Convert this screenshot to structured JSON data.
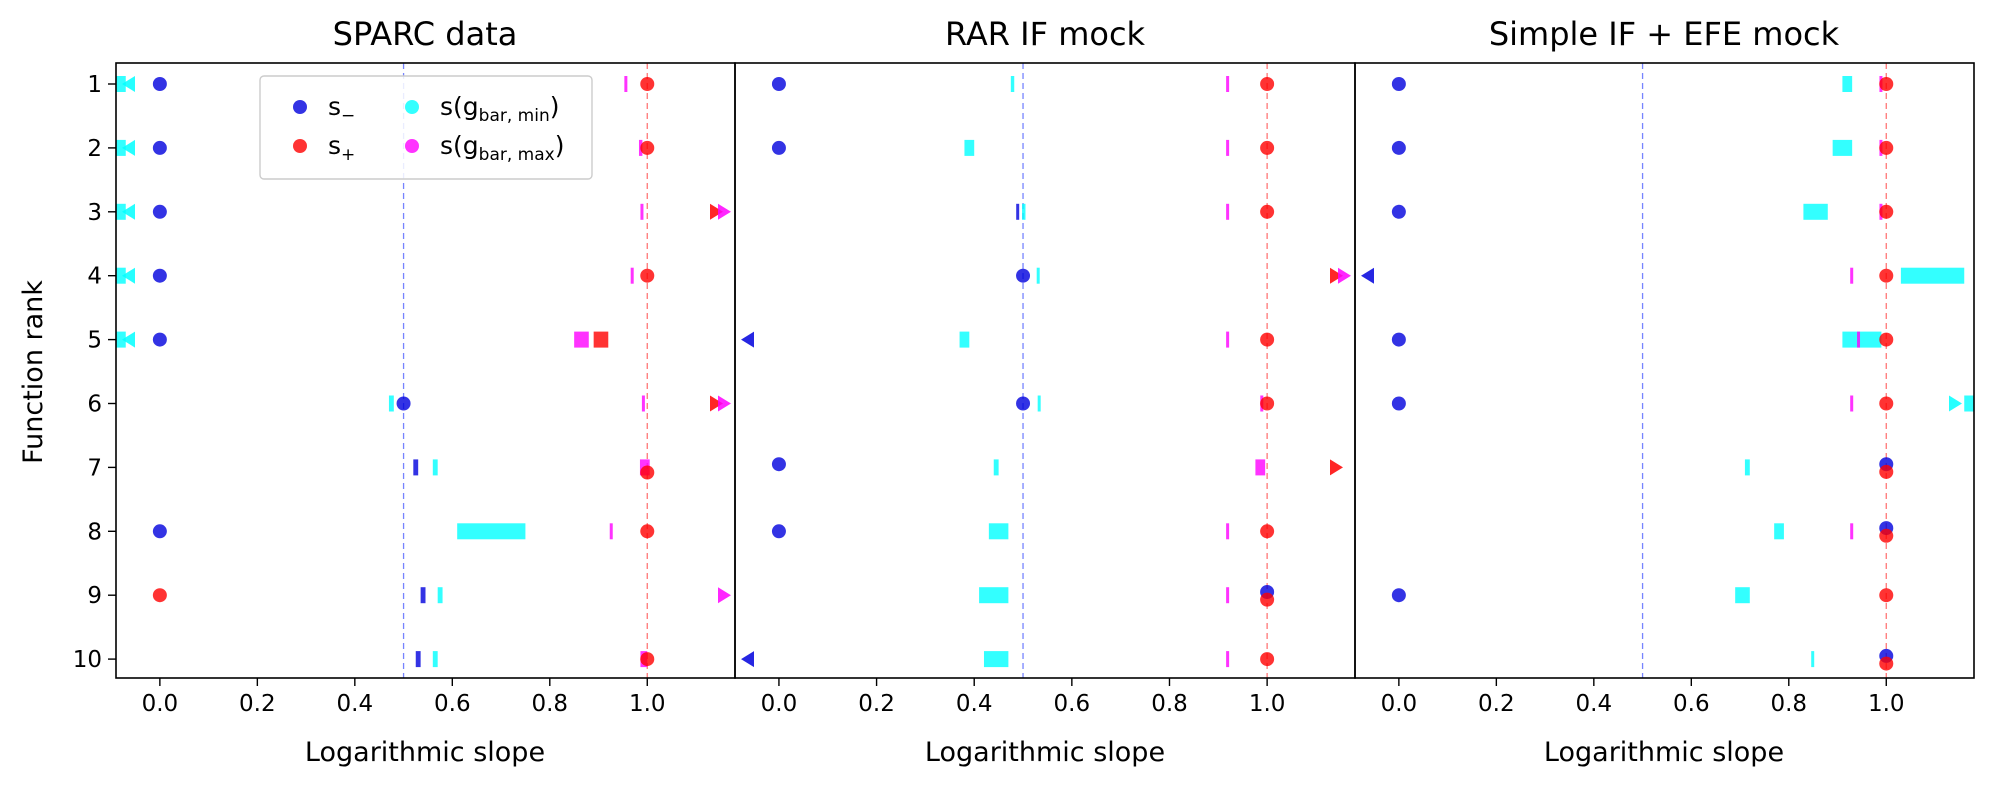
{
  "chart_data": {
    "type": "scatter",
    "ylabel": "Function rank",
    "y_categories": [
      "1",
      "2",
      "3",
      "4",
      "5",
      "6",
      "7",
      "8",
      "9",
      "10"
    ],
    "xlim": [
      -0.09,
      1.18
    ],
    "x_ticks": [
      "0.0",
      "0.2",
      "0.4",
      "0.6",
      "0.8",
      "1.0"
    ],
    "x_tick_values": [
      0.0,
      0.2,
      0.4,
      0.6,
      0.8,
      1.0
    ],
    "legend": {
      "location": "upper-left (first panel)",
      "entries": [
        {
          "key": "s_minus",
          "base": "s",
          "sub": "−",
          "color": "#0000dd"
        },
        {
          "key": "s_plus",
          "base": "s",
          "sub": "+",
          "color": "#ff0000"
        },
        {
          "key": "s_gmin",
          "base": "s(g",
          "sub": "bar, min",
          "tail": ")",
          "color": "#00ffff"
        },
        {
          "key": "s_gmax",
          "base": "s(g",
          "sub": "bar, max",
          "tail": ")",
          "color": "#ff00ff"
        }
      ]
    },
    "panels": [
      {
        "title": "SPARC data",
        "xlabel": "Logarithmic slope",
        "ref_lines": [
          0.5,
          1.0
        ],
        "s_minus": [
          {
            "rank": 1,
            "x": 0.0
          },
          {
            "rank": 2,
            "x": 0.0
          },
          {
            "rank": 3,
            "x": 0.0
          },
          {
            "rank": 4,
            "x": 0.0
          },
          {
            "rank": 5,
            "x": 0.0
          },
          {
            "rank": 6,
            "x": 0.5
          },
          {
            "rank": 8,
            "x": 0.0
          },
          {
            "rank": 9,
            "x": null
          },
          {
            "rank": 10,
            "x": null
          }
        ],
        "s_plus": [
          {
            "rank": 1,
            "x": 1.0
          },
          {
            "rank": 2,
            "x": 1.0
          },
          {
            "rank": 4,
            "x": 1.0
          },
          {
            "rank": 7,
            "x": 1.0,
            "dy": 0.08
          },
          {
            "rank": 8,
            "x": 1.0
          },
          {
            "rank": 9,
            "x": 0.0
          },
          {
            "rank": 10,
            "x": 1.0
          }
        ],
        "s_gmin_range": [
          {
            "rank": 1,
            "x": [
              -0.09,
              -0.07
            ]
          },
          {
            "rank": 2,
            "x": [
              -0.09,
              -0.07
            ]
          },
          {
            "rank": 3,
            "x": [
              -0.09,
              -0.07
            ]
          },
          {
            "rank": 4,
            "x": [
              -0.09,
              -0.07
            ]
          },
          {
            "rank": 5,
            "x": [
              -0.09,
              -0.07
            ]
          },
          {
            "rank": 6,
            "x": [
              0.47,
              0.48
            ]
          },
          {
            "rank": 7,
            "x": [
              0.56,
              0.57
            ]
          },
          {
            "rank": 8,
            "x": [
              0.61,
              0.75
            ]
          },
          {
            "rank": 9,
            "x": [
              0.57,
              0.58
            ]
          },
          {
            "rank": 10,
            "x": [
              0.56,
              0.57
            ]
          }
        ],
        "s_gmax_range": [
          {
            "rank": 1,
            "x": [
              0.953,
              0.958
            ]
          },
          {
            "rank": 2,
            "x": [
              0.983,
              0.99
            ]
          },
          {
            "rank": 3,
            "x": [
              0.986,
              0.99
            ]
          },
          {
            "rank": 4,
            "x": [
              0.966,
              0.971
            ]
          },
          {
            "rank": 5,
            "x": [
              0.85,
              0.88
            ]
          },
          {
            "rank": 6,
            "x": [
              0.989,
              0.993
            ]
          },
          {
            "rank": 7,
            "x": [
              0.985,
              1.005
            ]
          },
          {
            "rank": 8,
            "x": [
              0.923,
              0.929
            ]
          },
          {
            "rank": 10,
            "x": [
              0.986,
              1.0
            ]
          }
        ],
        "s_minus_range": [
          {
            "rank": 7,
            "x": [
              0.52,
              0.53
            ]
          },
          {
            "rank": 9,
            "x": [
              0.535,
              0.545
            ]
          },
          {
            "rank": 10,
            "x": [
              0.525,
              0.535
            ]
          }
        ],
        "s_plus_range": [
          {
            "rank": 5,
            "x": [
              0.89,
              0.92
            ]
          }
        ],
        "markers": [
          {
            "rank": 1,
            "series": "s_gmin",
            "dir": "left"
          },
          {
            "rank": 2,
            "series": "s_gmin",
            "dir": "left"
          },
          {
            "rank": 3,
            "series": "s_gmin",
            "dir": "left"
          },
          {
            "rank": 4,
            "series": "s_gmin",
            "dir": "left"
          },
          {
            "rank": 5,
            "series": "s_gmin",
            "dir": "left"
          },
          {
            "rank": 3,
            "series": "s_plus",
            "dir": "right"
          },
          {
            "rank": 3,
            "series": "s_gmax",
            "dir": "right"
          },
          {
            "rank": 6,
            "series": "s_plus",
            "dir": "right"
          },
          {
            "rank": 6,
            "series": "s_gmax",
            "dir": "right"
          },
          {
            "rank": 9,
            "series": "s_gmax",
            "dir": "right"
          }
        ]
      },
      {
        "title": "RAR IF mock",
        "xlabel": "Logarithmic slope",
        "ref_lines": [
          0.5,
          1.0
        ],
        "s_minus": [
          {
            "rank": 1,
            "x": 0.0
          },
          {
            "rank": 2,
            "x": 0.0
          },
          {
            "rank": 4,
            "x": 0.5
          },
          {
            "rank": 6,
            "x": 0.5
          },
          {
            "rank": 7,
            "x": 0.0,
            "dy": -0.05
          },
          {
            "rank": 8,
            "x": 0.0
          },
          {
            "rank": 9,
            "x": 1.0,
            "dy": -0.05
          }
        ],
        "s_plus": [
          {
            "rank": 1,
            "x": 1.0
          },
          {
            "rank": 2,
            "x": 1.0
          },
          {
            "rank": 3,
            "x": 1.0
          },
          {
            "rank": 5,
            "x": 1.0
          },
          {
            "rank": 6,
            "x": 1.0
          },
          {
            "rank": 8,
            "x": 1.0
          },
          {
            "rank": 9,
            "x": 1.0,
            "dy": 0.07
          },
          {
            "rank": 10,
            "x": 1.0
          }
        ],
        "s_gmin_range": [
          {
            "rank": 1,
            "x": [
              0.475,
              0.482
            ]
          },
          {
            "rank": 2,
            "x": [
              0.38,
              0.4
            ]
          },
          {
            "rank": 3,
            "x": [
              0.498,
              0.505
            ]
          },
          {
            "rank": 4,
            "x": [
              0.528,
              0.533
            ]
          },
          {
            "rank": 5,
            "x": [
              0.37,
              0.39
            ]
          },
          {
            "rank": 6,
            "x": [
              0.53,
              0.535
            ]
          },
          {
            "rank": 7,
            "x": [
              0.44,
              0.45
            ]
          },
          {
            "rank": 8,
            "x": [
              0.43,
              0.47
            ]
          },
          {
            "rank": 9,
            "x": [
              0.41,
              0.47
            ]
          },
          {
            "rank": 10,
            "x": [
              0.42,
              0.47
            ]
          }
        ],
        "s_gmax_range": [
          {
            "rank": 1,
            "x": [
              0.916,
              0.92
            ]
          },
          {
            "rank": 2,
            "x": [
              0.916,
              0.92
            ]
          },
          {
            "rank": 3,
            "x": [
              0.916,
              0.92
            ]
          },
          {
            "rank": 5,
            "x": [
              0.916,
              0.92
            ]
          },
          {
            "rank": 6,
            "x": [
              0.986,
              0.99
            ]
          },
          {
            "rank": 7,
            "x": [
              0.976,
              0.996
            ]
          },
          {
            "rank": 8,
            "x": [
              0.916,
              0.92
            ]
          },
          {
            "rank": 9,
            "x": [
              0.916,
              0.92
            ]
          },
          {
            "rank": 10,
            "x": [
              0.916,
              0.92
            ]
          }
        ],
        "s_minus_range": [
          {
            "rank": 3,
            "x": [
              0.486,
              0.49
            ]
          }
        ],
        "s_plus_range": [],
        "markers": [
          {
            "rank": 4,
            "series": "s_plus",
            "dir": "right"
          },
          {
            "rank": 4,
            "series": "s_gmax",
            "dir": "right"
          },
          {
            "rank": 5,
            "series": "s_minus",
            "dir": "left"
          },
          {
            "rank": 7,
            "series": "s_plus",
            "dir": "right"
          },
          {
            "rank": 10,
            "series": "s_minus",
            "dir": "left"
          }
        ]
      },
      {
        "title": "Simple IF + EFE mock",
        "xlabel": "Logarithmic slope",
        "ref_lines": [
          0.5,
          1.0
        ],
        "s_minus": [
          {
            "rank": 1,
            "x": 0.0
          },
          {
            "rank": 2,
            "x": 0.0
          },
          {
            "rank": 3,
            "x": 0.0
          },
          {
            "rank": 5,
            "x": 0.0
          },
          {
            "rank": 6,
            "x": 0.0
          },
          {
            "rank": 7,
            "x": 1.0,
            "dy": -0.05
          },
          {
            "rank": 8,
            "x": 1.0,
            "dy": -0.05
          },
          {
            "rank": 9,
            "x": 0.0
          },
          {
            "rank": 10,
            "x": 1.0,
            "dy": -0.05
          }
        ],
        "s_plus": [
          {
            "rank": 1,
            "x": 1.0
          },
          {
            "rank": 2,
            "x": 1.0
          },
          {
            "rank": 3,
            "x": 1.0
          },
          {
            "rank": 4,
            "x": 1.0
          },
          {
            "rank": 5,
            "x": 1.0
          },
          {
            "rank": 6,
            "x": 1.0
          },
          {
            "rank": 7,
            "x": 1.0,
            "dy": 0.07
          },
          {
            "rank": 8,
            "x": 1.0,
            "dy": 0.07
          },
          {
            "rank": 9,
            "x": 1.0
          },
          {
            "rank": 10,
            "x": 1.0,
            "dy": 0.07
          }
        ],
        "s_gmin_range": [
          {
            "rank": 1,
            "x": [
              0.91,
              0.93
            ]
          },
          {
            "rank": 2,
            "x": [
              0.89,
              0.93
            ]
          },
          {
            "rank": 3,
            "x": [
              0.83,
              0.88
            ]
          },
          {
            "rank": 4,
            "x": [
              1.03,
              1.16
            ]
          },
          {
            "rank": 5,
            "x": [
              0.91,
              0.99
            ]
          },
          {
            "rank": 6,
            "x": [
              1.16,
              1.18
            ]
          },
          {
            "rank": 7,
            "x": [
              0.71,
              0.72
            ]
          },
          {
            "rank": 8,
            "x": [
              0.77,
              0.79
            ]
          },
          {
            "rank": 9,
            "x": [
              0.69,
              0.72
            ]
          },
          {
            "rank": 10,
            "x": [
              0.846,
              0.85
            ]
          }
        ],
        "s_gmax_range": [
          {
            "rank": 1,
            "x": [
              0.986,
              0.99
            ]
          },
          {
            "rank": 2,
            "x": [
              0.986,
              0.99
            ]
          },
          {
            "rank": 3,
            "x": [
              0.986,
              0.99
            ]
          },
          {
            "rank": 4,
            "x": [
              0.926,
              0.93
            ]
          },
          {
            "rank": 5,
            "x": [
              0.94,
              0.946
            ]
          },
          {
            "rank": 6,
            "x": [
              0.926,
              0.93
            ]
          },
          {
            "rank": 8,
            "x": [
              0.926,
              0.93
            ]
          }
        ],
        "s_minus_range": [],
        "s_plus_range": [],
        "markers": [
          {
            "rank": 4,
            "series": "s_minus",
            "dir": "left"
          },
          {
            "rank": 6,
            "series": "s_gmin",
            "dir": "right"
          }
        ]
      }
    ]
  }
}
